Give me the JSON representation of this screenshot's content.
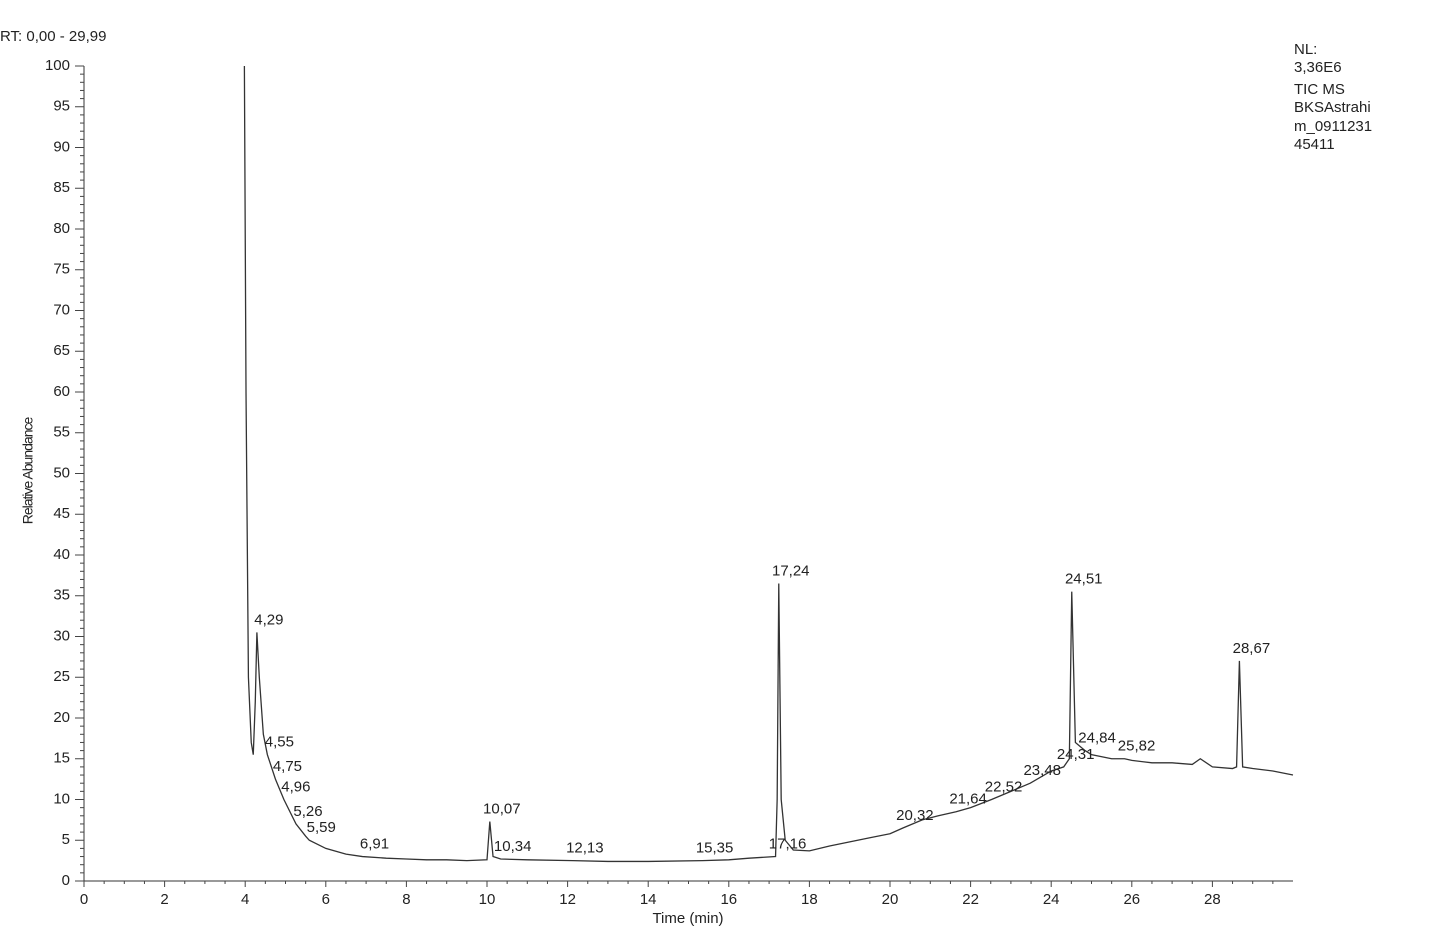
{
  "chart_data": {
    "type": "line",
    "title": "RT: 0,00 - 29,99",
    "info": [
      "NL:",
      "3,36E6",
      "TIC  MS",
      "BKSAstrahi",
      "m_0911231",
      "45411"
    ],
    "x_label": "Time (min)",
    "y_label": "Relative Abundance",
    "color": "#333333",
    "xlim": [
      0,
      30
    ],
    "ylim": [
      0,
      100
    ],
    "xticks": [
      0,
      2,
      4,
      6,
      8,
      10,
      12,
      14,
      16,
      18,
      20,
      22,
      24,
      26,
      28
    ],
    "yticks": [
      0,
      5,
      10,
      15,
      20,
      25,
      30,
      35,
      40,
      45,
      50,
      55,
      60,
      65,
      70,
      75,
      80,
      85,
      90,
      95,
      100
    ],
    "x": [
      3.98,
      4.02,
      4.08,
      4.15,
      4.2,
      4.25,
      4.29,
      4.35,
      4.45,
      4.55,
      4.75,
      4.96,
      5.26,
      5.5,
      5.59,
      6.0,
      6.5,
      6.91,
      7.5,
      8,
      8.5,
      9,
      9.5,
      10.0,
      10.07,
      10.15,
      10.34,
      11,
      12.13,
      13,
      14,
      15.35,
      16,
      16.5,
      17.16,
      17.2,
      17.24,
      17.3,
      17.4,
      17.6,
      18,
      18.5,
      19,
      19.5,
      20,
      20.32,
      20.8,
      21.2,
      21.64,
      22,
      22.52,
      23,
      23.48,
      24,
      24.31,
      24.45,
      24.51,
      24.6,
      24.84,
      25,
      25.5,
      25.82,
      26,
      26.5,
      27,
      27.5,
      27.7,
      28,
      28.5,
      28.6,
      28.67,
      28.75,
      29,
      29.5,
      30
    ],
    "values": [
      100,
      60,
      25,
      17,
      15.5,
      22,
      30.5,
      25,
      18,
      15.5,
      12.5,
      10,
      7,
      5.5,
      5,
      4,
      3.3,
      3,
      2.8,
      2.7,
      2.6,
      2.6,
      2.5,
      2.6,
      7.3,
      3,
      2.7,
      2.6,
      2.5,
      2.4,
      2.4,
      2.5,
      2.6,
      2.8,
      3,
      10,
      36.5,
      10,
      5,
      3.8,
      3.7,
      4.3,
      4.8,
      5.3,
      5.8,
      6.5,
      7.5,
      8,
      8.5,
      9,
      10,
      11,
      12,
      13.5,
      14,
      15,
      35.5,
      17,
      16,
      15.5,
      15,
      15,
      14.8,
      14.5,
      14.5,
      14.3,
      15,
      14,
      13.8,
      14,
      27,
      14,
      13.8,
      13.5,
      13
    ],
    "peak_labels": [
      {
        "value": 4.29,
        "label": "4,29",
        "y": 30.5
      },
      {
        "value": 4.55,
        "label": "4,55",
        "y": 15.5
      },
      {
        "value": 4.75,
        "label": "4,75",
        "y": 12.5
      },
      {
        "value": 4.96,
        "label": "4,96",
        "y": 10
      },
      {
        "value": 5.26,
        "label": "5,26",
        "y": 7
      },
      {
        "value": 5.59,
        "label": "5,59",
        "y": 5
      },
      {
        "value": 6.91,
        "label": "6,91",
        "y": 3
      },
      {
        "value": 10.07,
        "label": "10,07",
        "y": 7.3
      },
      {
        "value": 10.34,
        "label": "10,34",
        "y": 2.7
      },
      {
        "value": 12.13,
        "label": "12,13",
        "y": 2.5
      },
      {
        "value": 15.35,
        "label": "15,35",
        "y": 2.5
      },
      {
        "value": 17.16,
        "label": "17,16",
        "y": 3
      },
      {
        "value": 17.24,
        "label": "17,24",
        "y": 36.5
      },
      {
        "value": 20.32,
        "label": "20,32",
        "y": 6.5
      },
      {
        "value": 21.64,
        "label": "21,64",
        "y": 8.5
      },
      {
        "value": 22.52,
        "label": "22,52",
        "y": 10
      },
      {
        "value": 23.48,
        "label": "23,48",
        "y": 12
      },
      {
        "value": 24.31,
        "label": "24,31",
        "y": 14
      },
      {
        "value": 24.51,
        "label": "24,51",
        "y": 35.5
      },
      {
        "value": 24.84,
        "label": "24,84",
        "y": 16
      },
      {
        "value": 25.82,
        "label": "25,82",
        "y": 15
      },
      {
        "value": 28.67,
        "label": "28,67",
        "y": 27
      }
    ]
  }
}
